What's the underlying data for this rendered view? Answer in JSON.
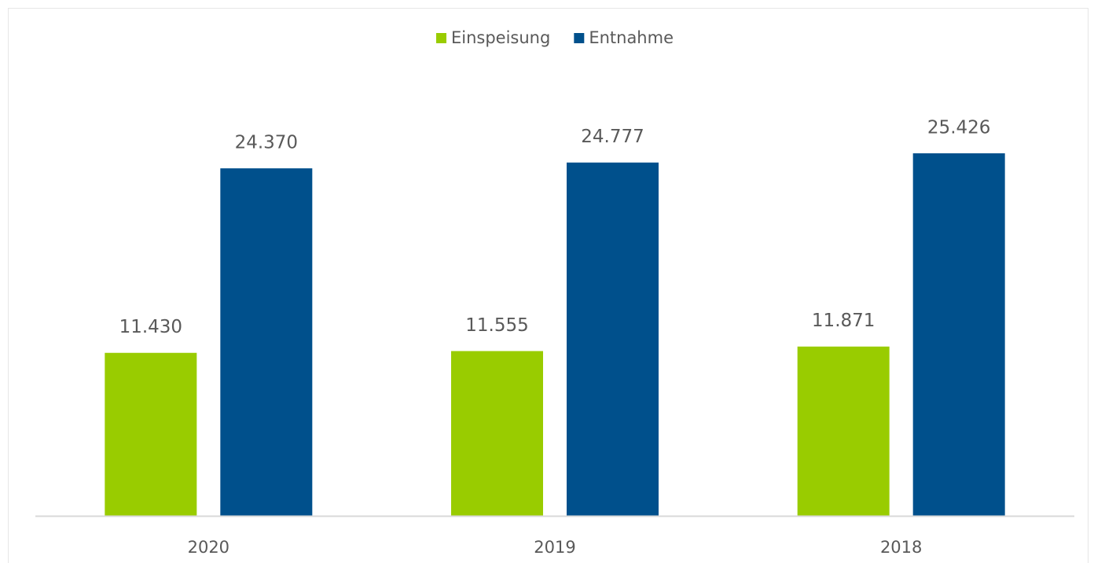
{
  "chart_data": {
    "type": "bar",
    "categories": [
      "2020",
      "2019",
      "2018"
    ],
    "series": [
      {
        "name": "Einspeisung",
        "color": "#99cc00",
        "values": [
          11430,
          11555,
          11871
        ],
        "value_labels": [
          "11.430",
          "11.555",
          "11.871"
        ]
      },
      {
        "name": "Entnahme",
        "color": "#00508c",
        "values": [
          24370,
          24777,
          25426
        ],
        "value_labels": [
          "24.370",
          "24.777",
          "25.426"
        ]
      }
    ],
    "ylim": [
      0,
      30000
    ],
    "legend": "top"
  }
}
